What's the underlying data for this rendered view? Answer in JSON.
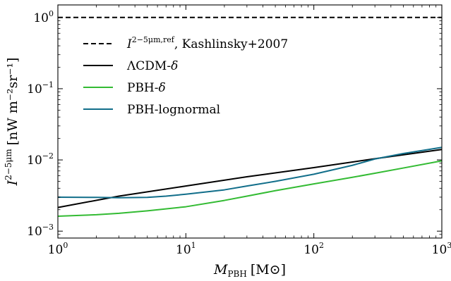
{
  "chart_data": {
    "type": "line",
    "xlabel_main": "M",
    "xlabel_sub": "PBH",
    "xlabel_unit": "[M⊙]",
    "ylabel_main": "I",
    "ylabel_sup": "2−5μm",
    "ylabel_unit": "[nW m⁻²sr⁻¹]",
    "x_scale": "log",
    "y_scale": "log",
    "xlim": [
      1,
      1000
    ],
    "ylim": [
      0.0008,
      1.5
    ],
    "x_ticks": [
      {
        "value": 1,
        "base": "10",
        "exp": "0"
      },
      {
        "value": 10,
        "base": "10",
        "exp": "1"
      },
      {
        "value": 100,
        "base": "10",
        "exp": "2"
      },
      {
        "value": 1000,
        "base": "10",
        "exp": "3"
      }
    ],
    "y_ticks": [
      {
        "value": 0.001,
        "base": "10",
        "exp": "−3"
      },
      {
        "value": 0.01,
        "base": "10",
        "exp": "−2"
      },
      {
        "value": 0.1,
        "base": "10",
        "exp": "−1"
      },
      {
        "value": 1,
        "base": "10",
        "exp": "0"
      }
    ],
    "grid": false,
    "legend_position": "top-left",
    "series": [
      {
        "name": "Kashlinsky+2007",
        "legend_main": "I",
        "legend_sup": "2−5μm,ref",
        "legend_tail": ", Kashlinsky+2007",
        "color": "#000000",
        "dash": "dashed",
        "x": [
          1,
          1000
        ],
        "y": [
          1.0,
          1.0
        ]
      },
      {
        "name": "ΛCDM-δ",
        "legend_main": "ΛCDM-",
        "legend_tail": "δ",
        "color": "#000000",
        "dash": "solid",
        "x": [
          1,
          3,
          10,
          30,
          100,
          300,
          1000
        ],
        "y": [
          0.00215,
          0.0031,
          0.0043,
          0.0058,
          0.0078,
          0.0104,
          0.014
        ]
      },
      {
        "name": "PBH-δ",
        "legend_main": "PBH-",
        "legend_tail": "δ",
        "color": "#33bb33",
        "dash": "solid",
        "x": [
          1,
          2,
          3,
          5,
          10,
          20,
          30,
          50,
          100,
          200,
          300,
          500,
          1000
        ],
        "y": [
          0.00162,
          0.0017,
          0.00178,
          0.00193,
          0.0022,
          0.0027,
          0.0031,
          0.0037,
          0.0046,
          0.0057,
          0.0065,
          0.0077,
          0.0097
        ]
      },
      {
        "name": "PBH-lognormal",
        "legend_main": "PBH-lognormal",
        "legend_tail": "",
        "color": "#116e8a",
        "dash": "solid",
        "x": [
          1,
          2,
          3,
          5,
          7,
          10,
          20,
          30,
          50,
          100,
          200,
          300,
          500,
          1000
        ],
        "y": [
          0.003,
          0.00298,
          0.00295,
          0.00298,
          0.0031,
          0.0033,
          0.0038,
          0.0043,
          0.005,
          0.0063,
          0.0084,
          0.0103,
          0.0123,
          0.015
        ]
      }
    ]
  }
}
